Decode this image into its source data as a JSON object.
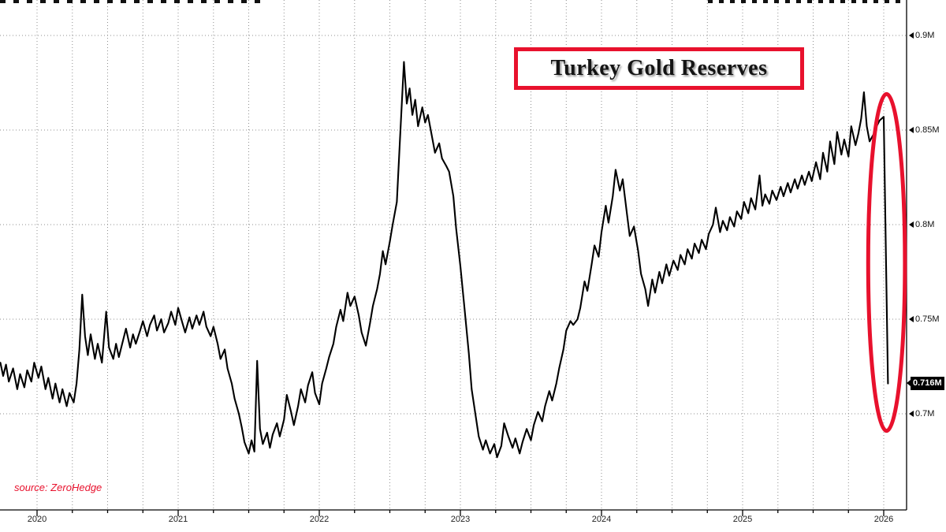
{
  "colors": {
    "accent_red": "#e8112d",
    "line": "#000000",
    "grid": "#8f8f8f",
    "background": "#ffffff",
    "badge_bg": "#000000",
    "badge_text": "#ffffff"
  },
  "chart_data": {
    "type": "line",
    "title": "Turkey Gold Reserves",
    "source_credit": "source: ZeroHedge",
    "xlabel": "",
    "ylabel": "",
    "legend": "none",
    "grid": "dotted; vertical quarterly lines, horizontal lines at labeled ticks",
    "xlim": [
      2019.74,
      2026.16
    ],
    "ylim": [
      0.649,
      0.919
    ],
    "x_ticks": [
      {
        "label": "2020",
        "value": 2020
      },
      {
        "label": "2021",
        "value": 2021
      },
      {
        "label": "2022",
        "value": 2022
      },
      {
        "label": "2023",
        "value": 2023
      },
      {
        "label": "2024",
        "value": 2024
      },
      {
        "label": "2025",
        "value": 2025
      },
      {
        "label": "2026",
        "value": 2026
      }
    ],
    "y_ticks": [
      {
        "label": "0.9M",
        "value": 0.9
      },
      {
        "label": "0.85M",
        "value": 0.85
      },
      {
        "label": "0.8M",
        "value": 0.8
      },
      {
        "label": "0.75M",
        "value": 0.75
      },
      {
        "label": "0.7M",
        "value": 0.7
      }
    ],
    "last_point": {
      "label": "0.716M",
      "value": 0.716,
      "year": 2026.03
    },
    "annotation_ellipse": {
      "center_year": 2026.02,
      "center_value": 0.78,
      "year_radius": 0.13,
      "value_radius": 0.089,
      "color": "#e8112d",
      "note": "red ellipse highlighting final plunge to 0.716M"
    },
    "series": [
      {
        "name": "Turkey Gold Reserves (millions)",
        "color": "#000000",
        "points": [
          [
            2019.74,
            0.727
          ],
          [
            2019.76,
            0.72
          ],
          [
            2019.78,
            0.726
          ],
          [
            2019.8,
            0.717
          ],
          [
            2019.83,
            0.724
          ],
          [
            2019.86,
            0.713
          ],
          [
            2019.88,
            0.721
          ],
          [
            2019.91,
            0.714
          ],
          [
            2019.93,
            0.723
          ],
          [
            2019.96,
            0.717
          ],
          [
            2019.98,
            0.727
          ],
          [
            2020.01,
            0.719
          ],
          [
            2020.03,
            0.725
          ],
          [
            2020.06,
            0.713
          ],
          [
            2020.08,
            0.719
          ],
          [
            2020.11,
            0.708
          ],
          [
            2020.13,
            0.716
          ],
          [
            2020.16,
            0.706
          ],
          [
            2020.18,
            0.713
          ],
          [
            2020.21,
            0.704
          ],
          [
            2020.23,
            0.711
          ],
          [
            2020.26,
            0.706
          ],
          [
            2020.28,
            0.716
          ],
          [
            2020.3,
            0.734
          ],
          [
            2020.32,
            0.763
          ],
          [
            2020.34,
            0.741
          ],
          [
            2020.36,
            0.731
          ],
          [
            2020.38,
            0.742
          ],
          [
            2020.41,
            0.729
          ],
          [
            2020.43,
            0.737
          ],
          [
            2020.46,
            0.727
          ],
          [
            2020.49,
            0.754
          ],
          [
            2020.51,
            0.735
          ],
          [
            2020.54,
            0.729
          ],
          [
            2020.56,
            0.737
          ],
          [
            2020.58,
            0.73
          ],
          [
            2020.61,
            0.739
          ],
          [
            2020.63,
            0.745
          ],
          [
            2020.66,
            0.735
          ],
          [
            2020.68,
            0.742
          ],
          [
            2020.7,
            0.737
          ],
          [
            2020.73,
            0.744
          ],
          [
            2020.75,
            0.749
          ],
          [
            2020.78,
            0.741
          ],
          [
            2020.8,
            0.747
          ],
          [
            2020.83,
            0.752
          ],
          [
            2020.85,
            0.744
          ],
          [
            2020.88,
            0.75
          ],
          [
            2020.9,
            0.743
          ],
          [
            2020.93,
            0.748
          ],
          [
            2020.95,
            0.754
          ],
          [
            2020.98,
            0.747
          ],
          [
            2021.0,
            0.756
          ],
          [
            2021.03,
            0.748
          ],
          [
            2021.05,
            0.743
          ],
          [
            2021.08,
            0.751
          ],
          [
            2021.1,
            0.745
          ],
          [
            2021.13,
            0.752
          ],
          [
            2021.15,
            0.747
          ],
          [
            2021.18,
            0.754
          ],
          [
            2021.2,
            0.746
          ],
          [
            2021.23,
            0.741
          ],
          [
            2021.25,
            0.746
          ],
          [
            2021.28,
            0.737
          ],
          [
            2021.3,
            0.729
          ],
          [
            2021.33,
            0.734
          ],
          [
            2021.35,
            0.724
          ],
          [
            2021.38,
            0.716
          ],
          [
            2021.4,
            0.708
          ],
          [
            2021.43,
            0.7
          ],
          [
            2021.45,
            0.693
          ],
          [
            2021.47,
            0.685
          ],
          [
            2021.5,
            0.679
          ],
          [
            2021.52,
            0.686
          ],
          [
            2021.54,
            0.68
          ],
          [
            2021.56,
            0.728
          ],
          [
            2021.58,
            0.692
          ],
          [
            2021.6,
            0.684
          ],
          [
            2021.63,
            0.69
          ],
          [
            2021.65,
            0.682
          ],
          [
            2021.67,
            0.689
          ],
          [
            2021.7,
            0.695
          ],
          [
            2021.72,
            0.688
          ],
          [
            2021.75,
            0.697
          ],
          [
            2021.77,
            0.71
          ],
          [
            2021.8,
            0.701
          ],
          [
            2021.82,
            0.694
          ],
          [
            2021.85,
            0.704
          ],
          [
            2021.87,
            0.713
          ],
          [
            2021.9,
            0.706
          ],
          [
            2021.92,
            0.715
          ],
          [
            2021.95,
            0.722
          ],
          [
            2021.97,
            0.711
          ],
          [
            2022.0,
            0.705
          ],
          [
            2022.02,
            0.716
          ],
          [
            2022.05,
            0.724
          ],
          [
            2022.07,
            0.73
          ],
          [
            2022.1,
            0.737
          ],
          [
            2022.12,
            0.746
          ],
          [
            2022.15,
            0.755
          ],
          [
            2022.17,
            0.749
          ],
          [
            2022.2,
            0.764
          ],
          [
            2022.22,
            0.757
          ],
          [
            2022.25,
            0.762
          ],
          [
            2022.28,
            0.752
          ],
          [
            2022.3,
            0.743
          ],
          [
            2022.33,
            0.736
          ],
          [
            2022.36,
            0.748
          ],
          [
            2022.38,
            0.757
          ],
          [
            2022.41,
            0.766
          ],
          [
            2022.43,
            0.774
          ],
          [
            2022.45,
            0.786
          ],
          [
            2022.47,
            0.779
          ],
          [
            2022.5,
            0.791
          ],
          [
            2022.52,
            0.8
          ],
          [
            2022.55,
            0.812
          ],
          [
            2022.57,
            0.842
          ],
          [
            2022.6,
            0.886
          ],
          [
            2022.62,
            0.864
          ],
          [
            2022.64,
            0.872
          ],
          [
            2022.66,
            0.858
          ],
          [
            2022.68,
            0.866
          ],
          [
            2022.7,
            0.852
          ],
          [
            2022.73,
            0.862
          ],
          [
            2022.75,
            0.854
          ],
          [
            2022.77,
            0.858
          ],
          [
            2022.8,
            0.846
          ],
          [
            2022.82,
            0.838
          ],
          [
            2022.85,
            0.843
          ],
          [
            2022.87,
            0.835
          ],
          [
            2022.9,
            0.831
          ],
          [
            2022.92,
            0.828
          ],
          [
            2022.95,
            0.815
          ],
          [
            2022.97,
            0.798
          ],
          [
            2023.0,
            0.778
          ],
          [
            2023.03,
            0.755
          ],
          [
            2023.06,
            0.732
          ],
          [
            2023.08,
            0.713
          ],
          [
            2023.11,
            0.698
          ],
          [
            2023.13,
            0.688
          ],
          [
            2023.16,
            0.681
          ],
          [
            2023.18,
            0.686
          ],
          [
            2023.21,
            0.679
          ],
          [
            2023.24,
            0.684
          ],
          [
            2023.26,
            0.677
          ],
          [
            2023.29,
            0.683
          ],
          [
            2023.31,
            0.695
          ],
          [
            2023.34,
            0.688
          ],
          [
            2023.37,
            0.682
          ],
          [
            2023.39,
            0.687
          ],
          [
            2023.42,
            0.679
          ],
          [
            2023.44,
            0.685
          ],
          [
            2023.47,
            0.692
          ],
          [
            2023.5,
            0.686
          ],
          [
            2023.52,
            0.694
          ],
          [
            2023.55,
            0.701
          ],
          [
            2023.58,
            0.696
          ],
          [
            2023.6,
            0.704
          ],
          [
            2023.63,
            0.712
          ],
          [
            2023.65,
            0.707
          ],
          [
            2023.68,
            0.716
          ],
          [
            2023.7,
            0.724
          ],
          [
            2023.73,
            0.734
          ],
          [
            2023.75,
            0.744
          ],
          [
            2023.78,
            0.749
          ],
          [
            2023.8,
            0.747
          ],
          [
            2023.83,
            0.75
          ],
          [
            2023.85,
            0.756
          ],
          [
            2023.88,
            0.77
          ],
          [
            2023.9,
            0.765
          ],
          [
            2023.93,
            0.779
          ],
          [
            2023.95,
            0.789
          ],
          [
            2023.98,
            0.783
          ],
          [
            2024.0,
            0.796
          ],
          [
            2024.03,
            0.81
          ],
          [
            2024.05,
            0.801
          ],
          [
            2024.08,
            0.815
          ],
          [
            2024.1,
            0.829
          ],
          [
            2024.13,
            0.818
          ],
          [
            2024.15,
            0.824
          ],
          [
            2024.18,
            0.806
          ],
          [
            2024.2,
            0.794
          ],
          [
            2024.23,
            0.799
          ],
          [
            2024.26,
            0.786
          ],
          [
            2024.28,
            0.774
          ],
          [
            2024.31,
            0.766
          ],
          [
            2024.33,
            0.757
          ],
          [
            2024.36,
            0.771
          ],
          [
            2024.38,
            0.764
          ],
          [
            2024.41,
            0.775
          ],
          [
            2024.43,
            0.769
          ],
          [
            2024.46,
            0.779
          ],
          [
            2024.48,
            0.773
          ],
          [
            2024.51,
            0.781
          ],
          [
            2024.54,
            0.776
          ],
          [
            2024.56,
            0.784
          ],
          [
            2024.59,
            0.779
          ],
          [
            2024.61,
            0.787
          ],
          [
            2024.64,
            0.782
          ],
          [
            2024.66,
            0.79
          ],
          [
            2024.69,
            0.785
          ],
          [
            2024.71,
            0.792
          ],
          [
            2024.74,
            0.787
          ],
          [
            2024.76,
            0.795
          ],
          [
            2024.79,
            0.8
          ],
          [
            2024.81,
            0.809
          ],
          [
            2024.84,
            0.796
          ],
          [
            2024.86,
            0.802
          ],
          [
            2024.89,
            0.797
          ],
          [
            2024.91,
            0.804
          ],
          [
            2024.94,
            0.799
          ],
          [
            2024.96,
            0.807
          ],
          [
            2024.99,
            0.803
          ],
          [
            2025.01,
            0.812
          ],
          [
            2025.04,
            0.806
          ],
          [
            2025.06,
            0.814
          ],
          [
            2025.09,
            0.808
          ],
          [
            2025.12,
            0.826
          ],
          [
            2025.14,
            0.81
          ],
          [
            2025.16,
            0.816
          ],
          [
            2025.19,
            0.811
          ],
          [
            2025.21,
            0.818
          ],
          [
            2025.24,
            0.813
          ],
          [
            2025.27,
            0.82
          ],
          [
            2025.29,
            0.815
          ],
          [
            2025.32,
            0.822
          ],
          [
            2025.34,
            0.817
          ],
          [
            2025.37,
            0.824
          ],
          [
            2025.39,
            0.819
          ],
          [
            2025.42,
            0.826
          ],
          [
            2025.44,
            0.821
          ],
          [
            2025.47,
            0.828
          ],
          [
            2025.49,
            0.823
          ],
          [
            2025.52,
            0.833
          ],
          [
            2025.55,
            0.824
          ],
          [
            2025.57,
            0.838
          ],
          [
            2025.6,
            0.828
          ],
          [
            2025.62,
            0.844
          ],
          [
            2025.65,
            0.832
          ],
          [
            2025.67,
            0.849
          ],
          [
            2025.7,
            0.837
          ],
          [
            2025.72,
            0.845
          ],
          [
            2025.75,
            0.836
          ],
          [
            2025.77,
            0.852
          ],
          [
            2025.8,
            0.842
          ],
          [
            2025.82,
            0.848
          ],
          [
            2025.84,
            0.856
          ],
          [
            2025.86,
            0.87
          ],
          [
            2025.88,
            0.852
          ],
          [
            2025.9,
            0.844
          ],
          [
            2025.93,
            0.848
          ],
          [
            2025.95,
            0.852
          ],
          [
            2025.97,
            0.855
          ],
          [
            2026.0,
            0.857
          ],
          [
            2026.03,
            0.716
          ]
        ]
      }
    ]
  }
}
